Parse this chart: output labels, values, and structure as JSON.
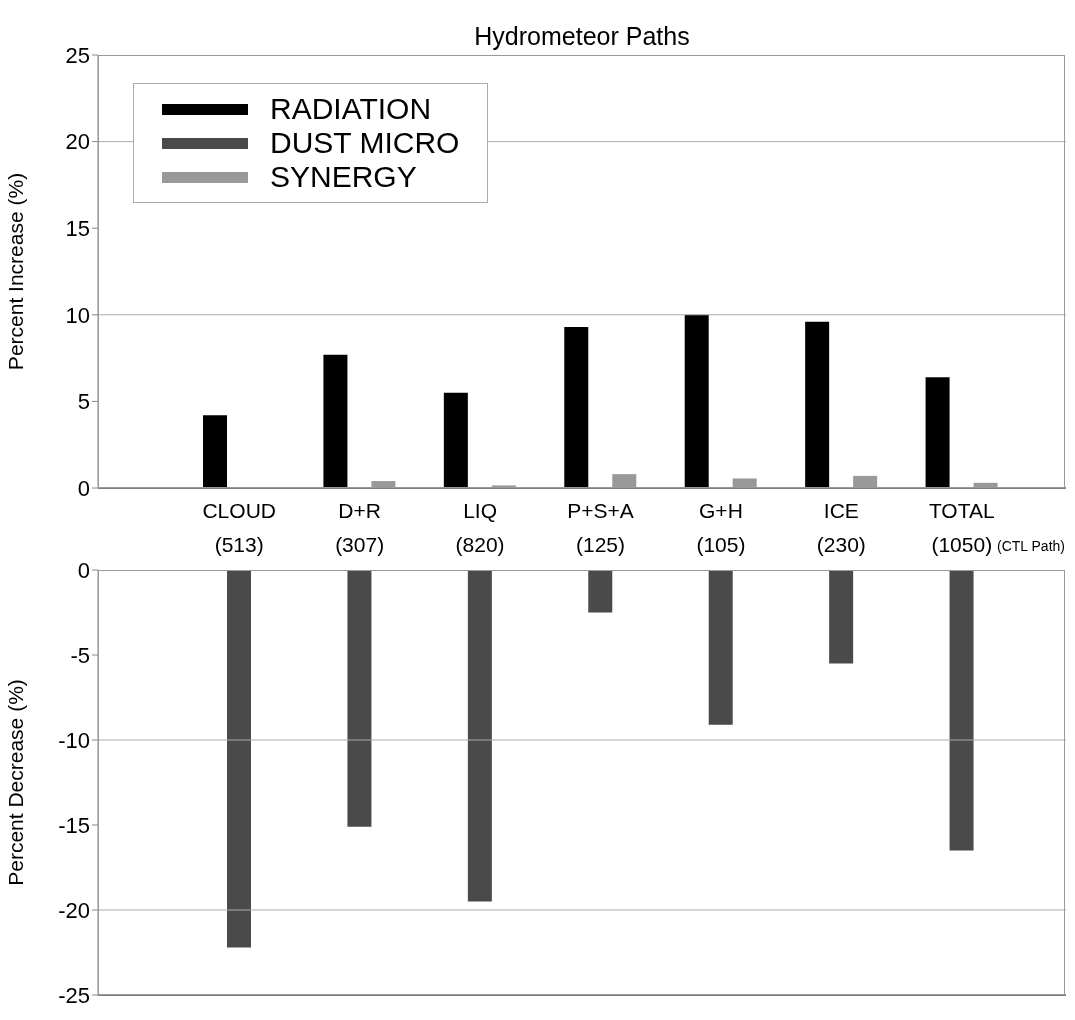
{
  "chart_data": [
    {
      "type": "bar",
      "title": "Hydrometeor Paths",
      "ylabel": "Percent Increase (%)",
      "categories": [
        "CLOUD\n(513)",
        "D+R\n(307)",
        "LIQ\n(820)",
        "P+S+A\n(125)",
        "G+H\n(105)",
        "ICE\n(230)",
        "TOTAL\n(1050)"
      ],
      "series": [
        {
          "name": "RADIATION",
          "color": "#000000",
          "values": [
            4.2,
            7.7,
            5.5,
            9.3,
            10.0,
            9.6,
            6.4
          ]
        },
        {
          "name": "DUST MICRO",
          "color": "#4a4a4a",
          "values": [
            null,
            null,
            null,
            null,
            null,
            null,
            null
          ]
        },
        {
          "name": "SYNERGY",
          "color": "#999999",
          "values": [
            0,
            0.4,
            0.15,
            0.8,
            0.55,
            0.7,
            0.3
          ]
        }
      ],
      "ylim": [
        0,
        25
      ],
      "yticks": [
        0,
        5,
        10,
        15,
        20,
        25
      ],
      "ref_lines": [
        {
          "axis": "y",
          "value": 10,
          "color": "#aaaaaa"
        },
        {
          "axis": "y",
          "value": 20,
          "color": "#aaaaaa"
        }
      ],
      "legend": "top left",
      "annotations": [
        "(CTL Path)"
      ]
    },
    {
      "type": "bar",
      "ylabel": "Percent Decrease (%)",
      "categories": [
        null,
        null,
        null,
        null,
        null,
        null,
        null
      ],
      "series": [
        {
          "color": "#000000",
          "values": [
            null,
            null,
            null,
            null,
            null,
            null,
            null
          ]
        },
        {
          "color": "#4a4a4a",
          "values": [
            -22.2,
            -15.1,
            -19.5,
            -2.5,
            -9.1,
            -5.5,
            -16.5
          ]
        },
        {
          "color": "#999999",
          "values": [
            null,
            null,
            null,
            null,
            null,
            null,
            null
          ]
        }
      ],
      "ylim": [
        -25,
        0
      ],
      "yticks": [
        0,
        -5,
        -10,
        -15,
        -20,
        -25
      ],
      "ref_lines": [
        {
          "axis": "y",
          "value": -10,
          "color": "#aaaaaa"
        },
        {
          "axis": "y",
          "value": -20,
          "color": "#aaaaaa"
        }
      ],
      "tick_labels": "y"
    }
  ]
}
